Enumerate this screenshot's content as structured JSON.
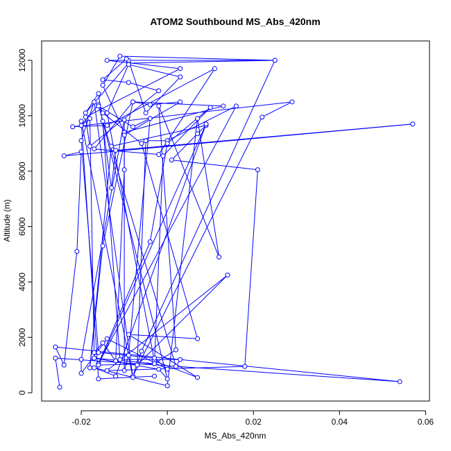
{
  "chart_data": {
    "type": "line",
    "title": "ATOM2 Southbound MS_Abs_420nm",
    "xlabel": "MS_Abs_420nm",
    "ylabel": "Altitude (m)",
    "xlim": [
      -0.0292,
      0.0609
    ],
    "ylim": [
      -300,
      12700
    ],
    "x_ticks": [
      -0.02,
      0.0,
      0.02,
      0.04,
      0.06
    ],
    "x_tick_labels": [
      "-0.02",
      "0.00",
      "0.02",
      "0.04",
      "0.06"
    ],
    "y_ticks": [
      0,
      2000,
      4000,
      6000,
      8000,
      10000,
      12000
    ],
    "y_tick_labels": [
      "0",
      "2000",
      "4000",
      "6000",
      "8000",
      "10000",
      "12000"
    ],
    "series": [
      {
        "color": "#0000ff",
        "marker": "open-circle",
        "points": [
          [
            -0.025,
            200
          ],
          [
            -0.026,
            1250
          ],
          [
            0.054,
            400
          ],
          [
            -0.026,
            1650
          ],
          [
            -0.024,
            1000
          ],
          [
            -0.021,
            5100
          ],
          [
            -0.02,
            8700
          ],
          [
            -0.024,
            8550
          ],
          [
            0.057,
            9700
          ],
          [
            -0.012,
            8750
          ],
          [
            -0.013,
            7400
          ],
          [
            -0.016,
            10800
          ],
          [
            -0.019,
            10100
          ],
          [
            -0.009,
            11900
          ],
          [
            0.025,
            12000
          ],
          [
            -0.011,
            12150
          ],
          [
            -0.015,
            11100
          ],
          [
            -0.01,
            9400
          ],
          [
            0.013,
            10350
          ],
          [
            -0.008,
            10500
          ],
          [
            -0.004,
            10400
          ],
          [
            0.003,
            10500
          ],
          [
            -0.01,
            9300
          ],
          [
            -0.01,
            8050
          ],
          [
            -0.012,
            1150
          ],
          [
            -0.015,
            1800
          ],
          [
            -0.017,
            1450
          ],
          [
            -0.018,
            9900
          ],
          [
            -0.02,
            9650
          ],
          [
            -0.016,
            10400
          ],
          [
            -0.015,
            10100
          ],
          [
            -0.006,
            9000
          ],
          [
            0.007,
            1950
          ],
          [
            -0.009,
            2100
          ],
          [
            0.007,
            550
          ],
          [
            -0.003,
            1150
          ],
          [
            -0.014,
            10100
          ],
          [
            -0.009,
            11850
          ],
          [
            0.003,
            11400
          ],
          [
            -0.005,
            10100
          ],
          [
            -0.009,
            12000
          ],
          [
            -0.0095,
            12050
          ],
          [
            -0.015,
            11300
          ],
          [
            -0.009,
            11200
          ],
          [
            -0.002,
            10900
          ],
          [
            -0.018,
            8900
          ],
          [
            -0.019,
            9950
          ],
          [
            0.003,
            11700
          ],
          [
            -0.014,
            12000
          ],
          [
            0.025,
            12000
          ],
          [
            -0.006,
            1500
          ],
          [
            -0.008,
            600
          ],
          [
            0.022,
            9950
          ],
          [
            0.029,
            10500
          ],
          [
            -0.022,
            9600
          ],
          [
            -0.014,
            9650
          ],
          [
            0.011,
            11700
          ],
          [
            -0.002,
            8600
          ],
          [
            -0.017,
            8800
          ],
          [
            -0.008,
            10500
          ],
          [
            -0.015,
            5300
          ],
          [
            -0.018,
            900
          ],
          [
            -0.013,
            8900
          ],
          [
            0.009,
            9650
          ],
          [
            0.007,
            9350
          ],
          [
            0.001,
            8400
          ],
          [
            0.021,
            8050
          ],
          [
            0.018,
            950
          ],
          [
            -0.014,
            800
          ],
          [
            0.014,
            4250
          ],
          [
            -0.007,
            1000
          ],
          [
            -0.005,
            9100
          ],
          [
            0.0,
            9100
          ],
          [
            0.016,
            10350
          ],
          [
            -0.016,
            1050
          ],
          [
            -0.004,
            5450
          ],
          [
            0.0,
            9000
          ],
          [
            0.01,
            10300
          ],
          [
            -0.001,
            8550
          ],
          [
            -0.003,
            1050
          ],
          [
            -0.016,
            1000
          ],
          [
            0.009,
            9700
          ],
          [
            -0.012,
            600
          ],
          [
            -0.017,
            900
          ],
          [
            0.0,
            250
          ],
          [
            0.007,
            9900
          ],
          [
            0.012,
            4900
          ],
          [
            -0.002,
            10350
          ],
          [
            0.002,
            1550
          ],
          [
            -0.003,
            1050
          ],
          [
            -0.017,
            1250
          ],
          [
            -0.002,
            850
          ],
          [
            0.0,
            500
          ],
          [
            -0.015,
            9800
          ],
          [
            -0.011,
            1200
          ],
          [
            0.003,
            1200
          ],
          [
            0.002,
            950
          ],
          [
            -0.016,
            10350
          ],
          [
            -0.008,
            9600
          ],
          [
            -0.004,
            9900
          ],
          [
            -0.009,
            1350
          ],
          [
            -0.01,
            800
          ],
          [
            -0.01,
            9850
          ],
          [
            -0.02,
            1200
          ],
          [
            -0.02,
            700
          ],
          [
            -0.014,
            1950
          ],
          [
            0.0,
            850
          ],
          [
            -0.003,
            1250
          ],
          [
            -0.016,
            1450
          ],
          [
            -0.02,
            9100
          ],
          [
            -0.017,
            10500
          ],
          [
            -0.008,
            550
          ],
          [
            -0.02,
            9800
          ],
          [
            -0.016,
            500
          ],
          [
            -0.003,
            600
          ]
        ]
      }
    ]
  }
}
